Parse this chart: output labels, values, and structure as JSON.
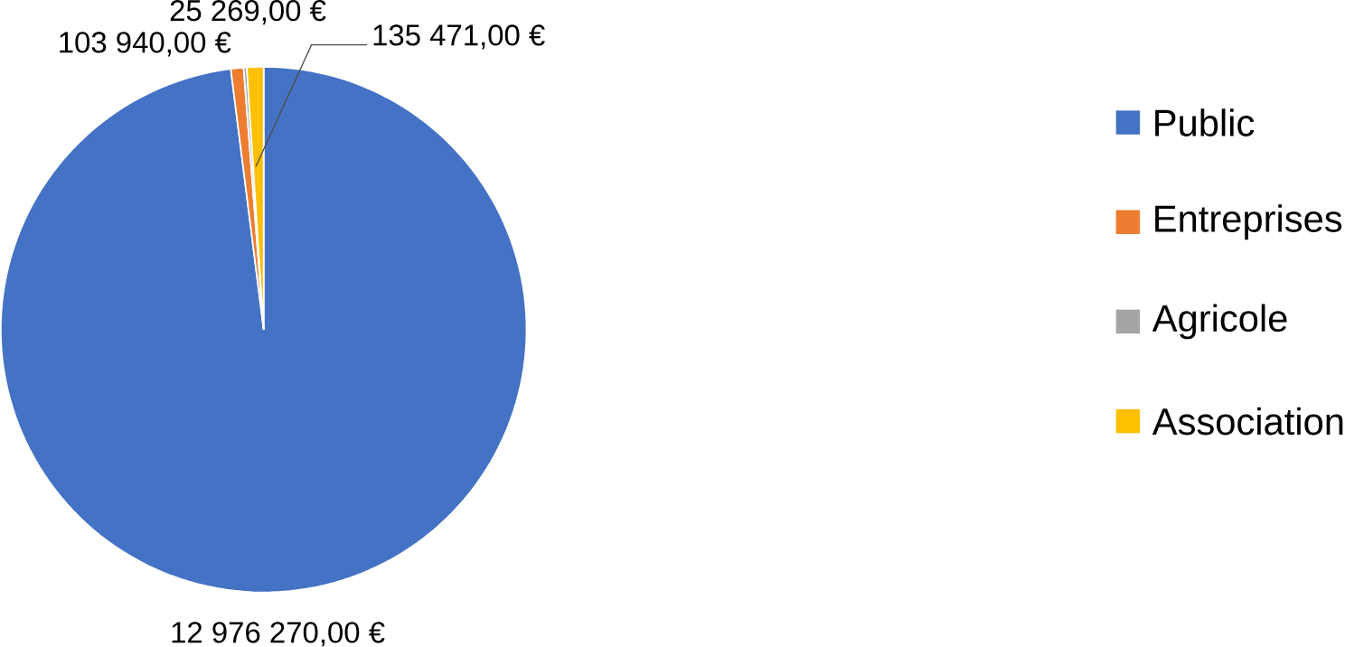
{
  "chart_data": {
    "type": "pie",
    "categories": [
      "Public",
      "Entreprises",
      "Agricole",
      "Association"
    ],
    "values": [
      12976270,
      103940,
      25269,
      135471
    ],
    "colors": [
      "#4472c4",
      "#ed7d31",
      "#a5a5a5",
      "#ffc000"
    ],
    "value_labels": [
      "12 976 270,00 €",
      "103 940,00 €",
      "25 269,00 €",
      "135 471,00 €"
    ],
    "legend": "right"
  }
}
